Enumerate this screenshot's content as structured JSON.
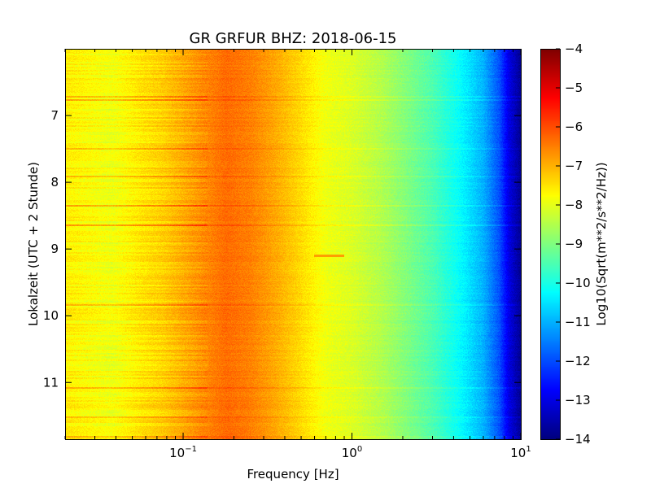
{
  "chart_data": {
    "type": "heatmap",
    "title": "GR GRFUR BHZ: 2018-06-15",
    "xlabel": "Frequency [Hz]",
    "ylabel": "Lokalzeit (UTC + 2 Stunde)",
    "colorbar_label": "Log10(Sqrt(m**2/s**2/Hz))",
    "x_scale": "log",
    "x_range": [
      0.02,
      10
    ],
    "x_ticks": [
      {
        "value": 0.1,
        "base": "10",
        "exp": "−1"
      },
      {
        "value": 1,
        "base": "10",
        "exp": "0"
      },
      {
        "value": 10,
        "base": "10",
        "exp": "1"
      }
    ],
    "y_range": [
      6.0,
      11.85
    ],
    "y_inverted": true,
    "y_ticks": [
      "7",
      "8",
      "9",
      "10",
      "11"
    ],
    "color_range": [
      -14,
      -4
    ],
    "colorbar_ticks": [
      "−4",
      "−5",
      "−6",
      "−7",
      "−8",
      "−9",
      "−10",
      "−11",
      "−12",
      "−13",
      "−14"
    ],
    "colormap": "jet",
    "grid": false,
    "freq_profile": [
      {
        "f": 0.02,
        "v": -7.6
      },
      {
        "f": 0.038,
        "v": -7.9
      },
      {
        "f": 0.058,
        "v": -7.5
      },
      {
        "f": 0.076,
        "v": -7.3
      },
      {
        "f": 0.135,
        "v": -6.6
      },
      {
        "f": 0.18,
        "v": -6.3
      },
      {
        "f": 0.25,
        "v": -6.5
      },
      {
        "f": 0.35,
        "v": -6.9
      },
      {
        "f": 0.5,
        "v": -7.4
      },
      {
        "f": 0.7,
        "v": -7.9
      },
      {
        "f": 1.0,
        "v": -8.1
      },
      {
        "f": 1.5,
        "v": -8.5
      },
      {
        "f": 2.0,
        "v": -8.9
      },
      {
        "f": 3.0,
        "v": -9.5
      },
      {
        "f": 4.5,
        "v": -10.3
      },
      {
        "f": 6.0,
        "v": -11.0
      },
      {
        "f": 7.5,
        "v": -12.0
      },
      {
        "f": 8.5,
        "v": -13.0
      },
      {
        "f": 10.0,
        "v": -13.8
      }
    ],
    "annotations": [
      {
        "type": "band",
        "time": 9.1,
        "f_from": 0.6,
        "f_to": 0.9,
        "v": -6.8
      }
    ]
  }
}
